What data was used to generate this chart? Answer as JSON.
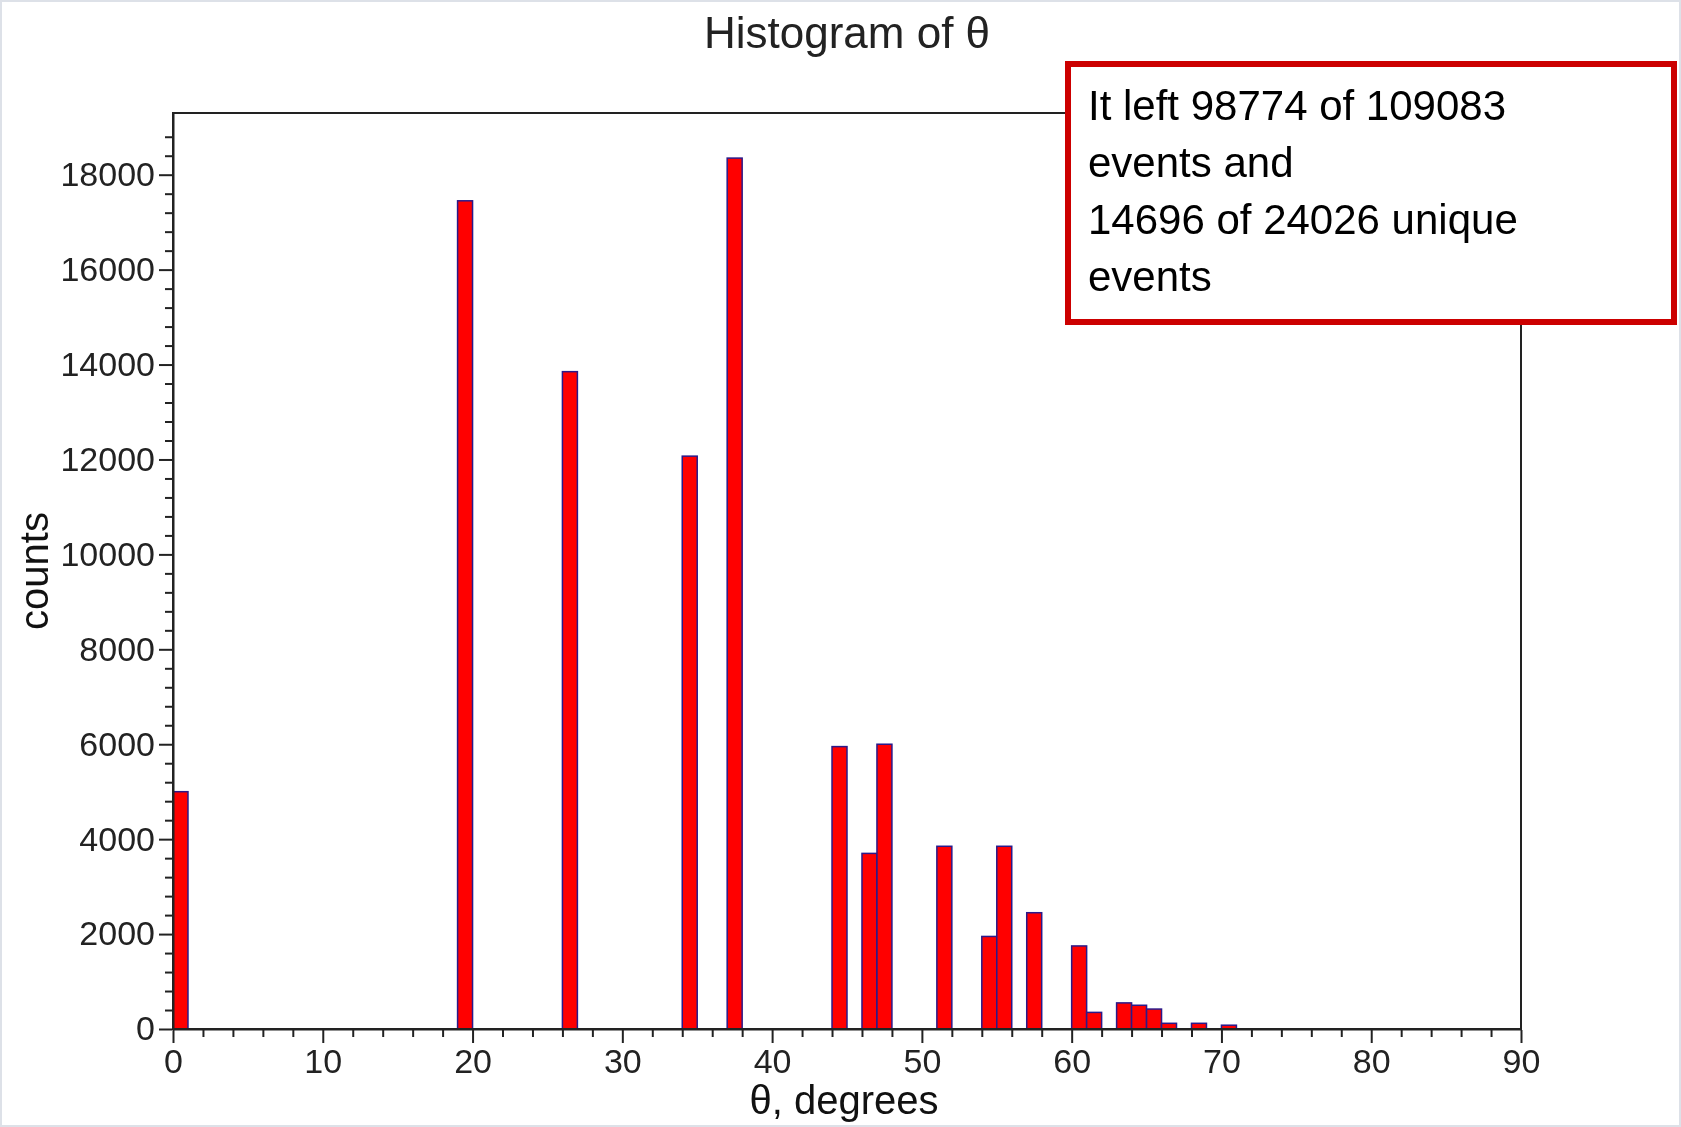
{
  "chart_data": {
    "type": "histogram",
    "title": "Histogram of θ",
    "xlabel": "θ, degrees",
    "ylabel": "counts",
    "color": "#ff0000",
    "bins": [
      0,
      1,
      2,
      3,
      4,
      5,
      6,
      7,
      8,
      9,
      10,
      11,
      12,
      13,
      14,
      15,
      16,
      17,
      18,
      19,
      20,
      21,
      22,
      23,
      24,
      25,
      26,
      27,
      28,
      29,
      30,
      31,
      32,
      33,
      34,
      35,
      36,
      37,
      38,
      39,
      40,
      41,
      42,
      43,
      44,
      45,
      46,
      47,
      48,
      49,
      50,
      51,
      52,
      53,
      54,
      55,
      56,
      57,
      58,
      59,
      60,
      61,
      62,
      63,
      64,
      65,
      66,
      67,
      68,
      69,
      70,
      71,
      72,
      73,
      74,
      75,
      76,
      77,
      78,
      79,
      80,
      81,
      82,
      83,
      84,
      85,
      86,
      87,
      88,
      89,
      90
    ],
    "values": [
      5000,
      0,
      0,
      0,
      0,
      0,
      0,
      0,
      0,
      0,
      0,
      0,
      0,
      0,
      0,
      0,
      0,
      0,
      0,
      17450,
      0,
      0,
      0,
      0,
      0,
      0,
      13850,
      0,
      0,
      0,
      0,
      0,
      0,
      0,
      12070,
      0,
      0,
      18350,
      0,
      0,
      0,
      0,
      0,
      0,
      5950,
      0,
      3700,
      6000,
      0,
      0,
      0,
      3850,
      0,
      0,
      1950,
      3850,
      0,
      2450,
      0,
      0,
      1750,
      350,
      0,
      550,
      500,
      420,
      120,
      null,
      120,
      null,
      80,
      null,
      null,
      0,
      0,
      0,
      0,
      0,
      0,
      0,
      0,
      0,
      0,
      0,
      0,
      0,
      0,
      0,
      0,
      0
    ],
    "xlim": [
      0,
      90
    ],
    "ylim": [
      0,
      19300
    ],
    "xticks": [
      0,
      {
        "value": 2,
        "label": null
      },
      {
        "value": 4,
        "label": null
      },
      {
        "value": 6,
        "label": null
      },
      {
        "value": 8,
        "label": null
      },
      10,
      {
        "value": 12,
        "label": null
      },
      {
        "value": 14,
        "label": null
      },
      {
        "value": 16,
        "label": null
      },
      {
        "value": 18,
        "label": null
      },
      20,
      {
        "value": 22,
        "label": null
      },
      {
        "value": 24,
        "label": null
      },
      {
        "value": 26,
        "label": null
      },
      {
        "value": 28,
        "label": null
      },
      30,
      {
        "value": 32,
        "label": null
      },
      {
        "value": 34,
        "label": null
      },
      {
        "value": 36,
        "label": null
      },
      {
        "value": 38,
        "label": null
      },
      40,
      {
        "value": 42,
        "label": null
      },
      {
        "value": 44,
        "label": null
      },
      {
        "value": 46,
        "label": null
      },
      {
        "value": 48,
        "label": null
      },
      50,
      {
        "value": 52,
        "label": null
      },
      {
        "value": 54,
        "label": null
      },
      {
        "value": 56,
        "label": null
      },
      {
        "value": 58,
        "label": null
      },
      60,
      {
        "value": 62,
        "label": null
      },
      {
        "value": 64,
        "label": null
      },
      {
        "value": 66,
        "label": null
      },
      {
        "value": 68,
        "label": null
      },
      70,
      {
        "value": 72,
        "label": null
      },
      {
        "value": 74,
        "label": null
      },
      {
        "value": 76,
        "label": null
      },
      {
        "value": 78,
        "label": null
      },
      80,
      {
        "value": 82,
        "label": null
      },
      {
        "value": 84,
        "label": null
      },
      {
        "value": 86,
        "label": null
      },
      {
        "value": 88,
        "label": null
      },
      90
    ],
    "yticks": [
      0,
      {
        "value": 400,
        "label": null
      },
      {
        "value": 800,
        "label": null
      },
      {
        "value": 1200,
        "label": null
      },
      {
        "value": 1600,
        "label": null
      },
      2000,
      {
        "value": 2400,
        "label": null
      },
      {
        "value": 2800,
        "label": null
      },
      {
        "value": 3200,
        "label": null
      },
      {
        "value": 3600,
        "label": null
      },
      4000,
      {
        "value": 4400,
        "label": null
      },
      {
        "value": 4800,
        "label": null
      },
      {
        "value": 5200,
        "label": null
      },
      {
        "value": 5600,
        "label": null
      },
      6000,
      {
        "value": 6400,
        "label": null
      },
      {
        "value": 6800,
        "label": null
      },
      {
        "value": 7200,
        "label": null
      },
      {
        "value": 7600,
        "label": null
      },
      8000,
      {
        "value": 8400,
        "label": null
      },
      {
        "value": 8800,
        "label": null
      },
      {
        "value": 9200,
        "label": null
      },
      {
        "value": 9600,
        "label": null
      },
      10000,
      {
        "value": 10400,
        "label": null
      },
      {
        "value": 10800,
        "label": null
      },
      {
        "value": 11200,
        "label": null
      },
      {
        "value": 11600,
        "label": null
      },
      12000,
      {
        "value": 12400,
        "label": null
      },
      {
        "value": 12800,
        "label": null
      },
      {
        "value": 13200,
        "label": null
      },
      {
        "value": 13600,
        "label": null
      },
      14000,
      {
        "value": 14400,
        "label": null
      },
      {
        "value": 14800,
        "label": null
      },
      {
        "value": 15200,
        "label": null
      },
      {
        "value": 15600,
        "label": null
      },
      16000,
      {
        "value": 16400,
        "label": null
      },
      {
        "value": 16800,
        "label": null
      },
      {
        "value": 17200,
        "label": null
      },
      {
        "value": 17600,
        "label": null
      },
      18000,
      {
        "value": 18400,
        "label": null
      },
      {
        "value": 18800,
        "label": null
      }
    ],
    "grid": false,
    "legend": false,
    "annotations": [
      "It left 98774 of 109083 events and\n14696 of 24026 unique events"
    ]
  }
}
